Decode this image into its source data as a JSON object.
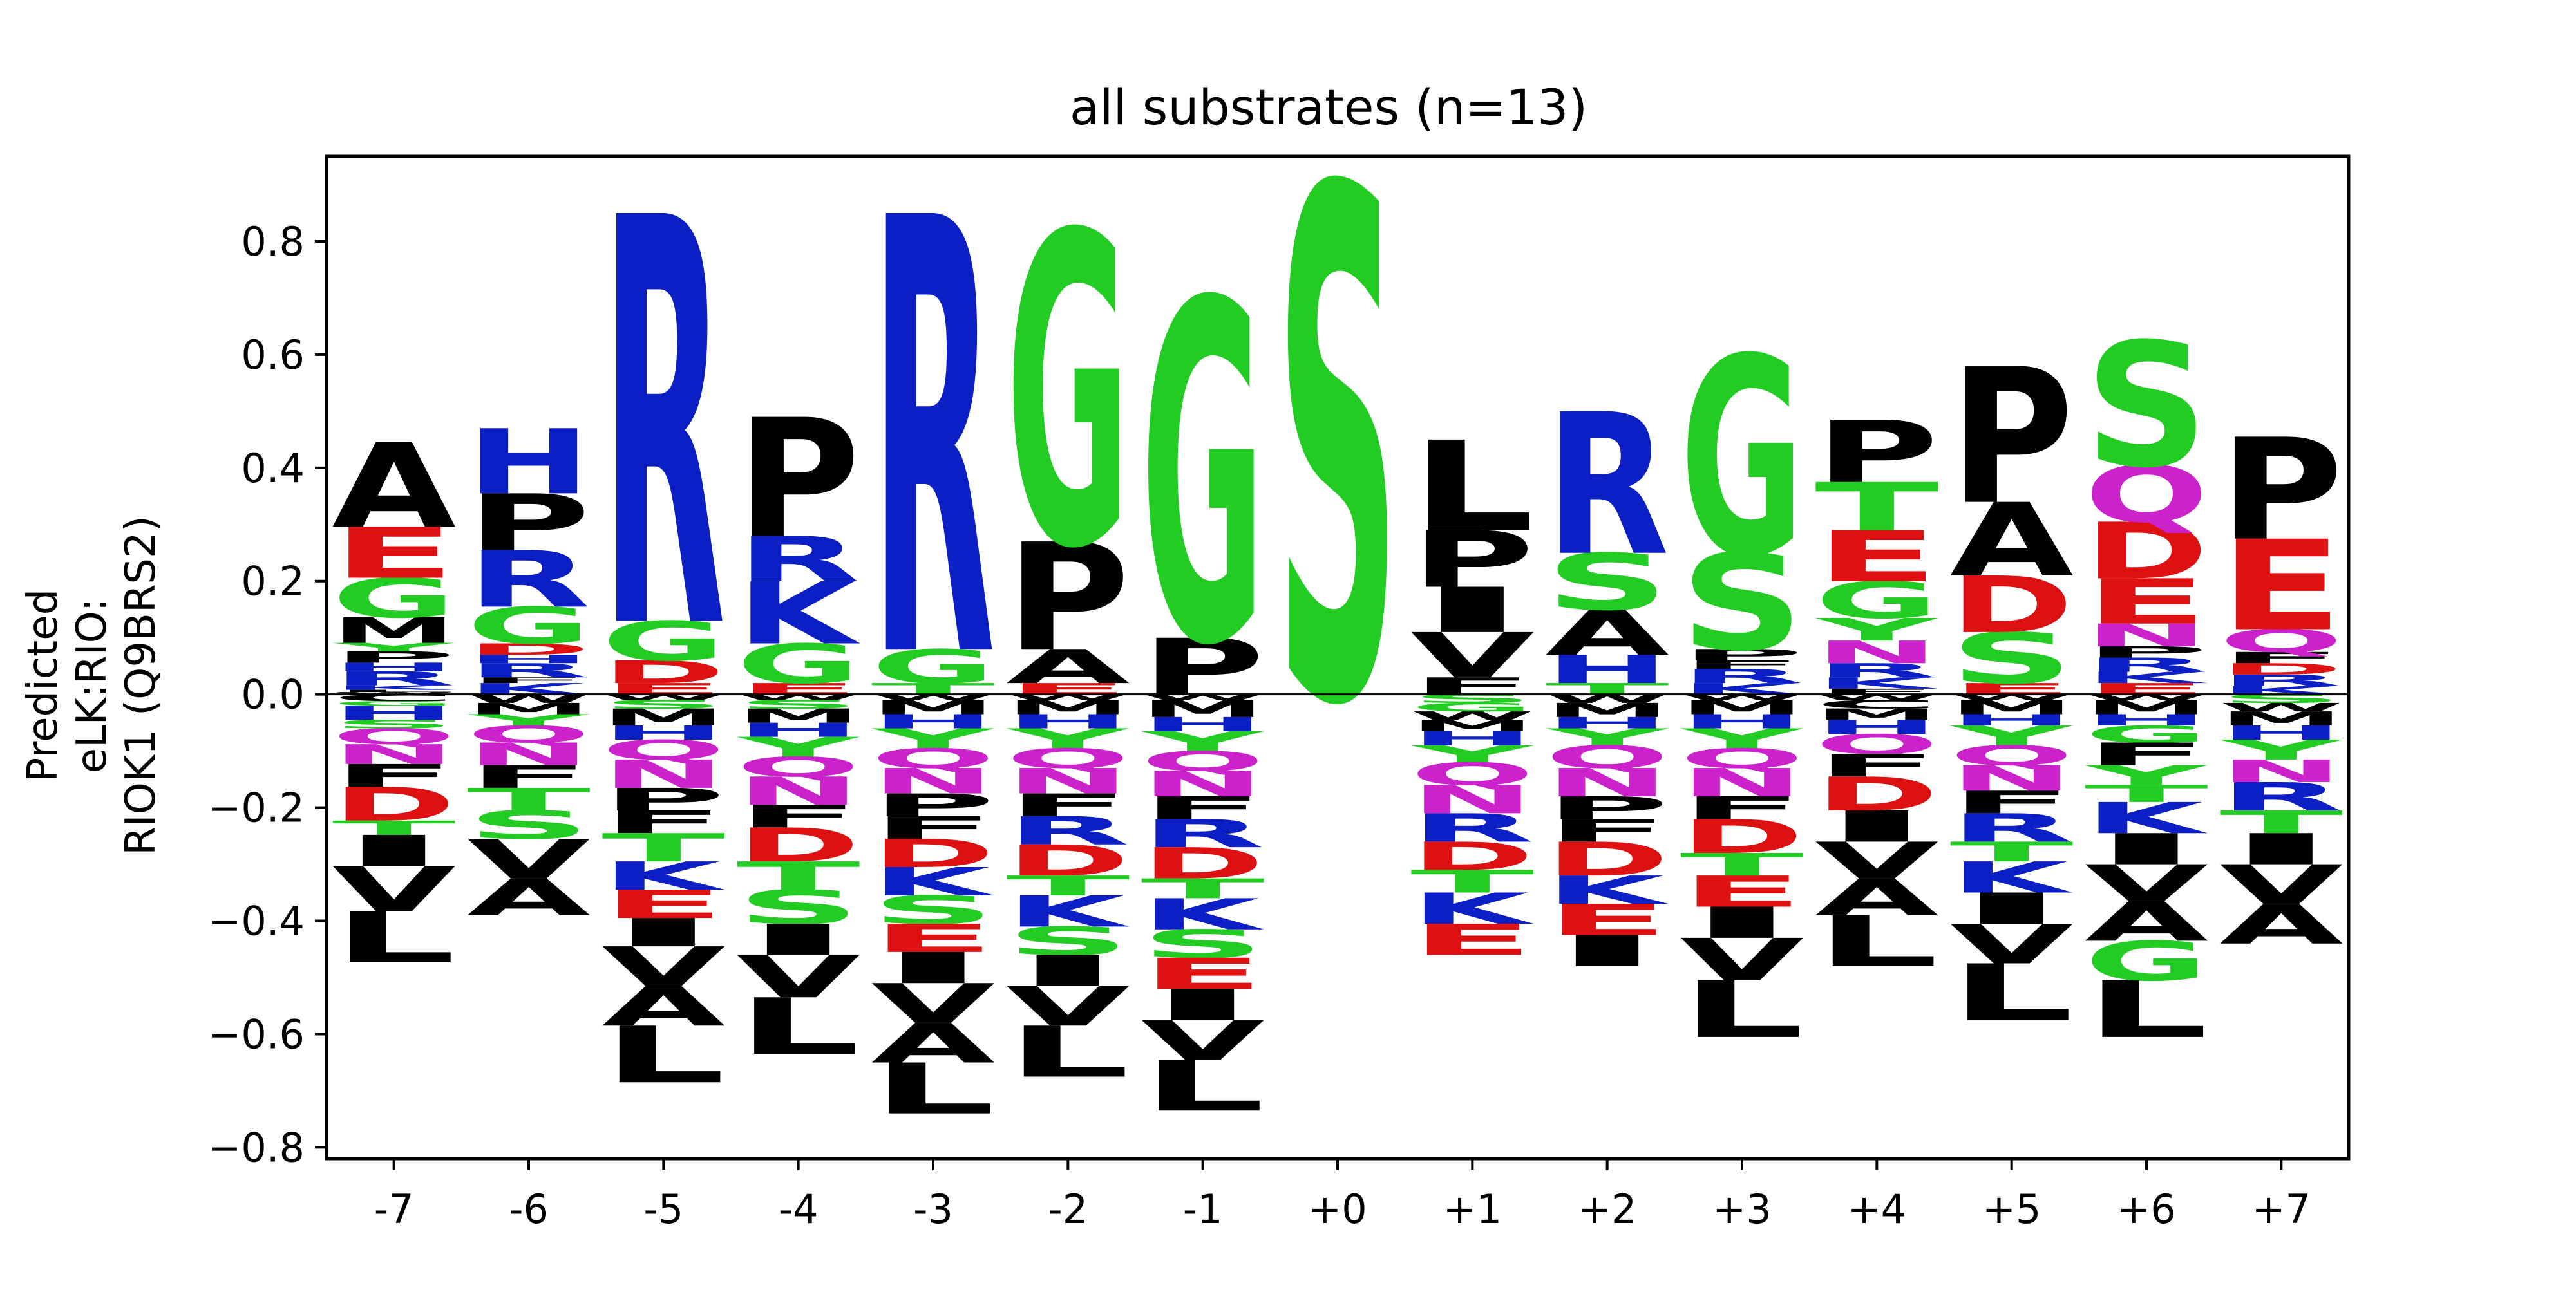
{
  "chart_data": {
    "type": "sequence-logo",
    "title": "all substrates (n=13)",
    "ylabel_lines": [
      "Predicted",
      "eLK:RIO:",
      "RIOK1 (Q9BRS2)"
    ],
    "xlabel": "",
    "ylim": [
      -0.82,
      0.95
    ],
    "yticks": [
      -0.8,
      -0.6,
      -0.4,
      -0.2,
      0.0,
      0.2,
      0.4,
      0.6,
      0.8
    ],
    "ytick_labels": [
      "−0.8",
      "−0.6",
      "−0.4",
      "−0.2",
      "0.0",
      "0.2",
      "0.4",
      "0.6",
      "0.8"
    ],
    "positions": [
      "-7",
      "-6",
      "-5",
      "-4",
      "-3",
      "-2",
      "-1",
      "+0",
      "+1",
      "+2",
      "+3",
      "+4",
      "+5",
      "+6",
      "+7"
    ],
    "grid": false,
    "baseline": 0.0,
    "colors": {
      "A": "#000000",
      "C": "#000000",
      "F": "#000000",
      "I": "#000000",
      "L": "#000000",
      "M": "#000000",
      "P": "#000000",
      "V": "#000000",
      "W": "#000000",
      "G": "#22cc22",
      "S": "#22cc22",
      "T": "#22cc22",
      "Y": "#22cc22",
      "H": "#0b1fc4",
      "K": "#0b1fc4",
      "R": "#0b1fc4",
      "D": "#dd1111",
      "E": "#dd1111",
      "N": "#cc22cc",
      "Q": "#cc22cc"
    },
    "columns": [
      {
        "position": "-7",
        "positive": [
          [
            "W",
            0.004
          ],
          [
            "L",
            0.004
          ],
          [
            "K",
            0.008
          ],
          [
            "R",
            0.025
          ],
          [
            "H",
            0.015
          ],
          [
            "P",
            0.02
          ],
          [
            "Y",
            0.015
          ],
          [
            "M",
            0.045
          ],
          [
            "G",
            0.07
          ],
          [
            "E",
            0.09
          ],
          [
            "A",
            0.15
          ]
        ],
        "negative": [
          [
            "C",
            0.012
          ],
          [
            "G",
            0.008
          ],
          [
            "H",
            0.025
          ],
          [
            "S",
            0.015
          ],
          [
            "Q",
            0.028
          ],
          [
            "N",
            0.035
          ],
          [
            "F",
            0.04
          ],
          [
            "D",
            0.06
          ],
          [
            "T",
            0.025
          ],
          [
            "I",
            0.055
          ],
          [
            "V",
            0.08
          ],
          [
            "L",
            0.09
          ]
        ]
      },
      {
        "position": "-6",
        "positive": [
          [
            "K",
            0.02
          ],
          [
            "F",
            0.01
          ],
          [
            "R",
            0.025
          ],
          [
            "H",
            0.015
          ],
          [
            "D",
            0.02
          ],
          [
            "G",
            0.065
          ],
          [
            "R",
            0.1
          ],
          [
            "P",
            0.1
          ],
          [
            "H",
            0.115
          ]
        ],
        "negative": [
          [
            "W",
            0.015
          ],
          [
            "M",
            0.02
          ],
          [
            "Y",
            0.02
          ],
          [
            "Q",
            0.03
          ],
          [
            "N",
            0.04
          ],
          [
            "F",
            0.04
          ],
          [
            "T",
            0.04
          ],
          [
            "S",
            0.05
          ],
          [
            "V",
            0.07
          ],
          [
            "A",
            0.065
          ]
        ]
      },
      {
        "position": "-5",
        "positive": [
          [
            "E",
            0.02
          ],
          [
            "D",
            0.04
          ],
          [
            "G",
            0.07
          ],
          [
            "R",
            0.72
          ]
        ],
        "negative": [
          [
            "W",
            0.01
          ],
          [
            "S",
            0.015
          ],
          [
            "M",
            0.03
          ],
          [
            "H",
            0.025
          ],
          [
            "Q",
            0.035
          ],
          [
            "N",
            0.05
          ],
          [
            "P",
            0.04
          ],
          [
            "F",
            0.04
          ],
          [
            "T",
            0.05
          ],
          [
            "K",
            0.05
          ],
          [
            "E",
            0.05
          ],
          [
            "I",
            0.05
          ],
          [
            "V",
            0.07
          ],
          [
            "A",
            0.07
          ],
          [
            "L",
            0.1
          ]
        ]
      },
      {
        "position": "-4",
        "positive": [
          [
            "E",
            0.02
          ],
          [
            "G",
            0.07
          ],
          [
            "K",
            0.11
          ],
          [
            "R",
            0.08
          ],
          [
            "P",
            0.21
          ]
        ],
        "negative": [
          [
            "W",
            0.01
          ],
          [
            "S",
            0.015
          ],
          [
            "M",
            0.025
          ],
          [
            "H",
            0.025
          ],
          [
            "Y",
            0.035
          ],
          [
            "Q",
            0.035
          ],
          [
            "N",
            0.05
          ],
          [
            "F",
            0.04
          ],
          [
            "D",
            0.06
          ],
          [
            "T",
            0.05
          ],
          [
            "S",
            0.06
          ],
          [
            "I",
            0.055
          ],
          [
            "V",
            0.075
          ],
          [
            "L",
            0.1
          ]
        ]
      },
      {
        "position": "-3",
        "positive": [
          [
            "T",
            0.02
          ],
          [
            "G",
            0.06
          ],
          [
            "R",
            0.77
          ]
        ],
        "negative": [
          [
            "W",
            0.01
          ],
          [
            "M",
            0.025
          ],
          [
            "H",
            0.025
          ],
          [
            "Y",
            0.035
          ],
          [
            "Q",
            0.035
          ],
          [
            "N",
            0.045
          ],
          [
            "P",
            0.04
          ],
          [
            "F",
            0.04
          ],
          [
            "D",
            0.05
          ],
          [
            "K",
            0.05
          ],
          [
            "S",
            0.05
          ],
          [
            "E",
            0.05
          ],
          [
            "I",
            0.055
          ],
          [
            "V",
            0.07
          ],
          [
            "A",
            0.07
          ],
          [
            "L",
            0.09
          ]
        ]
      },
      {
        "position": "-2",
        "positive": [
          [
            "E",
            0.02
          ],
          [
            "A",
            0.06
          ],
          [
            "P",
            0.19
          ],
          [
            "G",
            0.55
          ]
        ],
        "negative": [
          [
            "W",
            0.01
          ],
          [
            "M",
            0.025
          ],
          [
            "H",
            0.025
          ],
          [
            "Y",
            0.035
          ],
          [
            "Q",
            0.035
          ],
          [
            "N",
            0.045
          ],
          [
            "F",
            0.04
          ],
          [
            "R",
            0.05
          ],
          [
            "D",
            0.055
          ],
          [
            "T",
            0.035
          ],
          [
            "K",
            0.055
          ],
          [
            "S",
            0.05
          ],
          [
            "I",
            0.055
          ],
          [
            "V",
            0.07
          ],
          [
            "L",
            0.09
          ]
        ]
      },
      {
        "position": "-1",
        "positive": [
          [
            "P",
            0.1
          ],
          [
            "G",
            0.6
          ]
        ],
        "negative": [
          [
            "W",
            0.01
          ],
          [
            "M",
            0.03
          ],
          [
            "H",
            0.025
          ],
          [
            "Y",
            0.035
          ],
          [
            "Q",
            0.035
          ],
          [
            "N",
            0.045
          ],
          [
            "F",
            0.04
          ],
          [
            "R",
            0.05
          ],
          [
            "D",
            0.055
          ],
          [
            "T",
            0.035
          ],
          [
            "K",
            0.055
          ],
          [
            "S",
            0.05
          ],
          [
            "E",
            0.055
          ],
          [
            "I",
            0.055
          ],
          [
            "V",
            0.07
          ],
          [
            "L",
            0.09
          ]
        ]
      },
      {
        "position": "+0",
        "positive": [
          [
            "S",
            0.9
          ]
        ],
        "negative": []
      },
      {
        "position": "+1",
        "positive": [
          [
            "F",
            0.03
          ],
          [
            "V",
            0.08
          ],
          [
            "I",
            0.08
          ],
          [
            "P",
            0.1
          ],
          [
            "L",
            0.16
          ]
        ],
        "negative": [
          [
            "S",
            0.015
          ],
          [
            "G",
            0.015
          ],
          [
            "W",
            0.015
          ],
          [
            "M",
            0.02
          ],
          [
            "H",
            0.025
          ],
          [
            "Y",
            0.03
          ],
          [
            "Q",
            0.04
          ],
          [
            "N",
            0.05
          ],
          [
            "R",
            0.05
          ],
          [
            "D",
            0.05
          ],
          [
            "T",
            0.04
          ],
          [
            "K",
            0.055
          ],
          [
            "E",
            0.055
          ]
        ]
      },
      {
        "position": "+2",
        "positive": [
          [
            "T",
            0.02
          ],
          [
            "H",
            0.05
          ],
          [
            "A",
            0.08
          ],
          [
            "S",
            0.1
          ],
          [
            "R",
            0.25
          ]
        ],
        "negative": [
          [
            "W",
            0.015
          ],
          [
            "M",
            0.025
          ],
          [
            "H",
            0.02
          ],
          [
            "Y",
            0.03
          ],
          [
            "Q",
            0.04
          ],
          [
            "N",
            0.05
          ],
          [
            "P",
            0.04
          ],
          [
            "F",
            0.04
          ],
          [
            "D",
            0.06
          ],
          [
            "K",
            0.05
          ],
          [
            "E",
            0.055
          ],
          [
            "I",
            0.055
          ]
        ]
      },
      {
        "position": "+3",
        "positive": [
          [
            "K",
            0.02
          ],
          [
            "R",
            0.025
          ],
          [
            "F",
            0.015
          ],
          [
            "P",
            0.02
          ],
          [
            "S",
            0.17
          ],
          [
            "G",
            0.35
          ]
        ],
        "negative": [
          [
            "W",
            0.01
          ],
          [
            "M",
            0.025
          ],
          [
            "H",
            0.025
          ],
          [
            "Y",
            0.035
          ],
          [
            "Q",
            0.035
          ],
          [
            "N",
            0.05
          ],
          [
            "F",
            0.04
          ],
          [
            "D",
            0.06
          ],
          [
            "T",
            0.04
          ],
          [
            "E",
            0.055
          ],
          [
            "I",
            0.055
          ],
          [
            "V",
            0.075
          ],
          [
            "L",
            0.1
          ]
        ]
      },
      {
        "position": "+4",
        "positive": [
          [
            "F",
            0.01
          ],
          [
            "K",
            0.02
          ],
          [
            "R",
            0.025
          ],
          [
            "N",
            0.04
          ],
          [
            "Y",
            0.04
          ],
          [
            "G",
            0.065
          ],
          [
            "E",
            0.09
          ],
          [
            "T",
            0.085
          ],
          [
            "P",
            0.11
          ]
        ],
        "negative": [
          [
            "W",
            0.01
          ],
          [
            "C",
            0.015
          ],
          [
            "M",
            0.02
          ],
          [
            "H",
            0.025
          ],
          [
            "Q",
            0.035
          ],
          [
            "F",
            0.04
          ],
          [
            "D",
            0.06
          ],
          [
            "I",
            0.055
          ],
          [
            "V",
            0.065
          ],
          [
            "A",
            0.065
          ],
          [
            "L",
            0.09
          ]
        ]
      },
      {
        "position": "+5",
        "positive": [
          [
            "E",
            0.02
          ],
          [
            "S",
            0.09
          ],
          [
            "D",
            0.1
          ],
          [
            "A",
            0.13
          ],
          [
            "P",
            0.24
          ]
        ],
        "negative": [
          [
            "W",
            0.01
          ],
          [
            "M",
            0.025
          ],
          [
            "H",
            0.02
          ],
          [
            "Y",
            0.035
          ],
          [
            "Q",
            0.035
          ],
          [
            "N",
            0.045
          ],
          [
            "F",
            0.04
          ],
          [
            "R",
            0.05
          ],
          [
            "T",
            0.035
          ],
          [
            "K",
            0.055
          ],
          [
            "I",
            0.055
          ],
          [
            "V",
            0.07
          ],
          [
            "L",
            0.1
          ]
        ]
      },
      {
        "position": "+6",
        "positive": [
          [
            "E",
            0.02
          ],
          [
            "K",
            0.02
          ],
          [
            "R",
            0.025
          ],
          [
            "P",
            0.02
          ],
          [
            "N",
            0.04
          ],
          [
            "E",
            0.08
          ],
          [
            "D",
            0.1
          ],
          [
            "Q",
            0.1
          ],
          [
            "S",
            0.22
          ]
        ],
        "negative": [
          [
            "W",
            0.01
          ],
          [
            "M",
            0.025
          ],
          [
            "H",
            0.02
          ],
          [
            "G",
            0.03
          ],
          [
            "F",
            0.04
          ],
          [
            "Y",
            0.035
          ],
          [
            "T",
            0.03
          ],
          [
            "K",
            0.055
          ],
          [
            "I",
            0.055
          ],
          [
            "V",
            0.065
          ],
          [
            "A",
            0.07
          ],
          [
            "G",
            0.07
          ],
          [
            "L",
            0.1
          ]
        ]
      },
      {
        "position": "+7",
        "positive": [
          [
            "K",
            0.015
          ],
          [
            "R",
            0.02
          ],
          [
            "D",
            0.02
          ],
          [
            "F",
            0.02
          ],
          [
            "Q",
            0.04
          ],
          [
            "E",
            0.16
          ],
          [
            "P",
            0.18
          ]
        ],
        "negative": [
          [
            "S",
            0.015
          ],
          [
            "W",
            0.015
          ],
          [
            "M",
            0.025
          ],
          [
            "H",
            0.025
          ],
          [
            "Y",
            0.035
          ],
          [
            "N",
            0.04
          ],
          [
            "R",
            0.05
          ],
          [
            "T",
            0.04
          ],
          [
            "I",
            0.055
          ],
          [
            "V",
            0.07
          ],
          [
            "A",
            0.07
          ]
        ]
      }
    ]
  }
}
